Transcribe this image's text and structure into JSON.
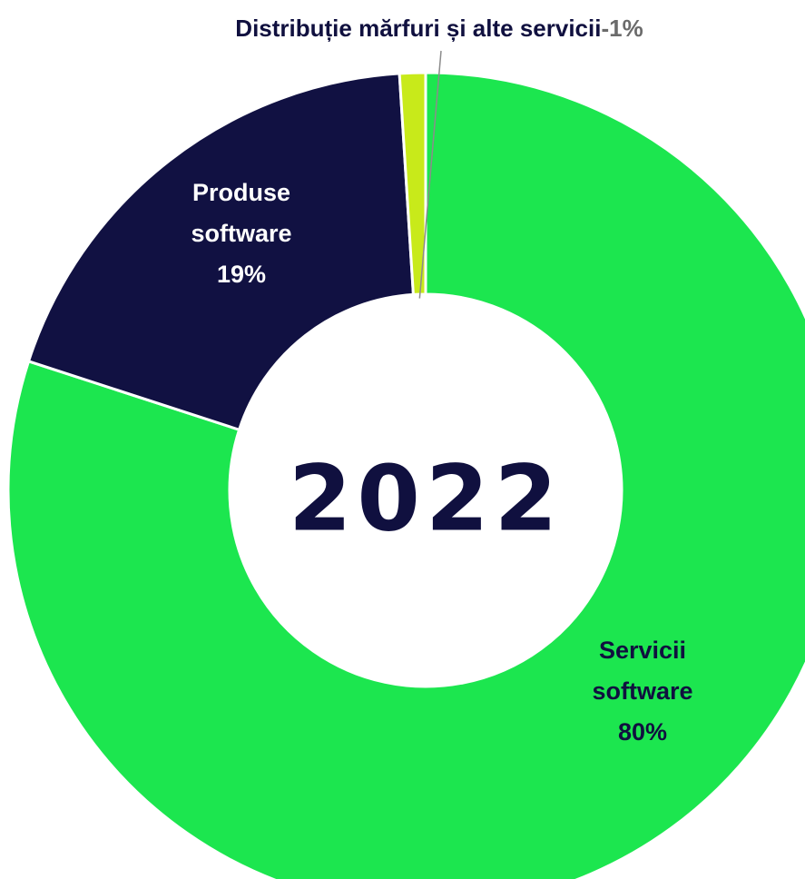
{
  "chart_data": {
    "type": "pie",
    "donut": true,
    "center_text": "2022",
    "slices": [
      {
        "name": "Servicii software",
        "value": 80,
        "label_lines": [
          "Servicii",
          "software",
          "80%"
        ],
        "color": "#1ce64f",
        "label_color": "#10103f"
      },
      {
        "name": "Produse software",
        "value": 19,
        "label_lines": [
          "Produse",
          "software",
          "19%"
        ],
        "color": "#111142",
        "label_color": "#ffffff"
      },
      {
        "name": "Distribuție mărfuri și alte servicii",
        "value": 1,
        "label_name": "Distribuție mărfuri și alte servicii",
        "label_value": "-1%",
        "color": "#c8ea1a",
        "label_color": "#10103f",
        "value_color": "#6b6b6b"
      }
    ]
  }
}
